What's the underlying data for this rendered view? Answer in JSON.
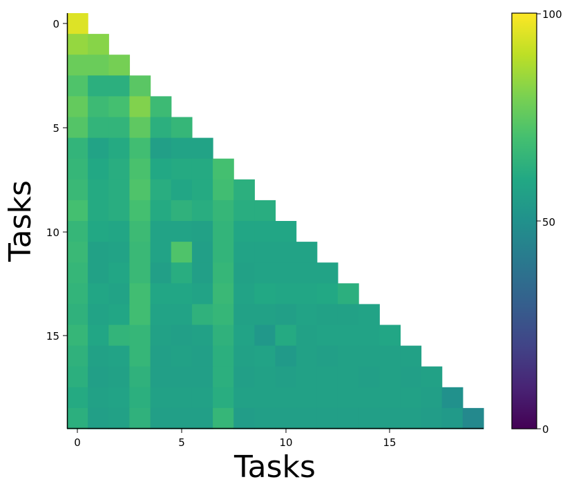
{
  "chart_data": {
    "type": "heatmap",
    "xlabel": "Tasks",
    "ylabel": "Tasks",
    "x_ticks": [
      0,
      5,
      10,
      15
    ],
    "y_ticks": [
      0,
      5,
      10,
      15
    ],
    "colormap": "viridis",
    "color_range": [
      0,
      100
    ],
    "colorbar_ticks": [
      0,
      50,
      100
    ],
    "matrix": [
      [
        95
      ],
      [
        84,
        82
      ],
      [
        77,
        77,
        79
      ],
      [
        72,
        63,
        63,
        74
      ],
      [
        76,
        68,
        70,
        81,
        68
      ],
      [
        73,
        65,
        65,
        75,
        63,
        66
      ],
      [
        65,
        58,
        61,
        69,
        56,
        58,
        58
      ],
      [
        66,
        60,
        62,
        71,
        60,
        61,
        61,
        70
      ],
      [
        67,
        61,
        62,
        72,
        62,
        59,
        61,
        69,
        63
      ],
      [
        70,
        61,
        62,
        70,
        61,
        64,
        62,
        66,
        62,
        62
      ],
      [
        66,
        60,
        59,
        68,
        58,
        58,
        57,
        65,
        59,
        59,
        59
      ],
      [
        67,
        57,
        58,
        67,
        58,
        72,
        56,
        65,
        58,
        58,
        58,
        58
      ],
      [
        66,
        57,
        59,
        67,
        56,
        62,
        56,
        66,
        57,
        58,
        58,
        58,
        58
      ],
      [
        65,
        59,
        58,
        69,
        59,
        59,
        58,
        67,
        58,
        60,
        59,
        59,
        60,
        63
      ],
      [
        64,
        58,
        59,
        69,
        58,
        58,
        64,
        66,
        57,
        57,
        56,
        58,
        57,
        57,
        58
      ],
      [
        66,
        59,
        65,
        66,
        57,
        56,
        57,
        64,
        58,
        53,
        61,
        57,
        58,
        58,
        58,
        59
      ],
      [
        64,
        57,
        58,
        66,
        56,
        57,
        56,
        63,
        57,
        58,
        54,
        57,
        56,
        57,
        57,
        57,
        57
      ],
      [
        63,
        56,
        57,
        64,
        56,
        56,
        56,
        63,
        56,
        57,
        56,
        57,
        57,
        57,
        56,
        57,
        56,
        57
      ],
      [
        61,
        57,
        58,
        63,
        57,
        57,
        57,
        62,
        57,
        57,
        57,
        57,
        57,
        57,
        57,
        57,
        57,
        56,
        50
      ],
      [
        63,
        56,
        57,
        64,
        56,
        56,
        56,
        66,
        55,
        56,
        56,
        56,
        56,
        56,
        56,
        56,
        56,
        55,
        54,
        47
      ]
    ]
  },
  "labels": {
    "x_tick_0": "0",
    "x_tick_5": "5",
    "x_tick_10": "10",
    "x_tick_15": "15",
    "y_tick_0": "0",
    "y_tick_5": "5",
    "y_tick_10": "10",
    "y_tick_15": "15",
    "colorbar_tick_0": "0",
    "colorbar_tick_50": "50",
    "colorbar_tick_100": "100"
  }
}
